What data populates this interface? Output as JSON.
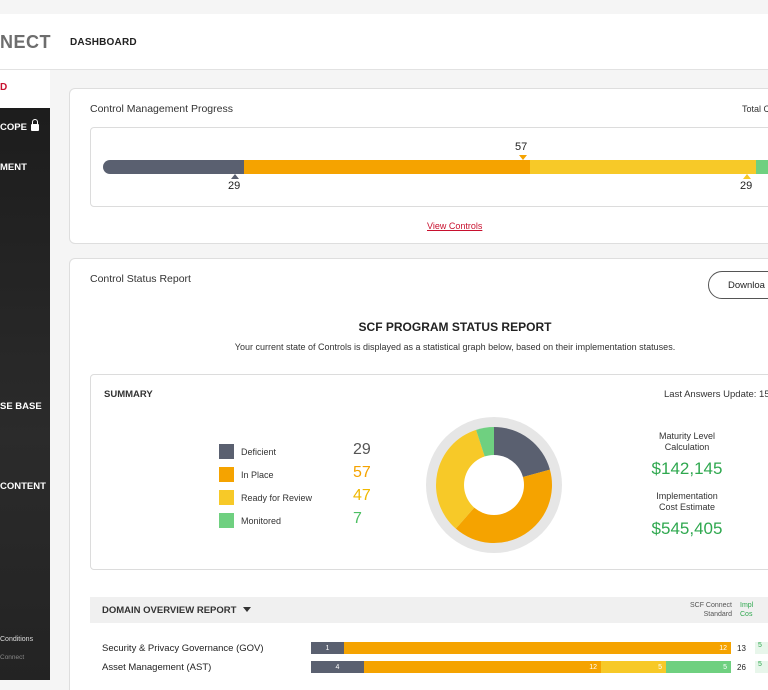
{
  "header": {
    "logo_text": "NECT",
    "page_title": "DASHBOARD"
  },
  "sidebar": {
    "active_item": "D",
    "items": [
      {
        "label": "COPE",
        "locked": true
      },
      {
        "label": "MENT"
      },
      {
        "label": "SE BASE"
      },
      {
        "label": "CONTENT"
      }
    ],
    "footer_terms": "Conditions",
    "footer_brand": "Connect"
  },
  "progress_card": {
    "title": "Control Management Progress",
    "total_label": "Total C",
    "markers": {
      "top": "57",
      "bottom_left": "29",
      "bottom_right": "29"
    },
    "view_controls": "View Controls"
  },
  "status_report": {
    "title": "Control Status Report",
    "download_label": "Downloa",
    "report_heading": "SCF PROGRAM STATUS REPORT",
    "report_subtitle": "Your current state of Controls is displayed as a statistical graph below, based on their implementation statuses.",
    "summary": {
      "heading": "SUMMARY",
      "last_update": "Last Answers Update: 15.",
      "legend": [
        {
          "label": "Deficient",
          "value": "29",
          "color": "#5a6070"
        },
        {
          "label": "In Place",
          "value": "57",
          "color": "#f5a300"
        },
        {
          "label": "Ready for Review",
          "value": "47",
          "color": "#f7c928"
        },
        {
          "label": "Monitored",
          "value": "7",
          "color": "#6fd080"
        }
      ],
      "maturity_label_1": "Maturity Level",
      "maturity_label_2": "Calculation",
      "maturity_value": "$142,145",
      "impl_label_1": "Implementation",
      "impl_label_2": "Cost Estimate",
      "impl_value": "$545,405"
    }
  },
  "chart_data": {
    "type": "pie",
    "categories": [
      "Deficient",
      "In Place",
      "Ready for Review",
      "Monitored"
    ],
    "values": [
      29,
      57,
      47,
      7
    ],
    "colors": [
      "#5a6070",
      "#f5a300",
      "#f7c928",
      "#6fd080"
    ],
    "title": ""
  },
  "domain_report": {
    "heading": "DOMAIN OVERVIEW REPORT",
    "col_standard_1": "SCF Connect",
    "col_standard_2": "Standard",
    "col_impl_1": "Impl",
    "col_impl_2": "Cos",
    "rows": [
      {
        "name": "Security & Privacy Governance (GOV)",
        "deficient": "1",
        "in_place": "12",
        "total": "13",
        "impl": "5"
      },
      {
        "name": "Asset Management (AST)",
        "deficient": "4",
        "in_place": "12",
        "ready": "5",
        "monitored": "5",
        "total": "26",
        "impl": "5"
      }
    ]
  }
}
